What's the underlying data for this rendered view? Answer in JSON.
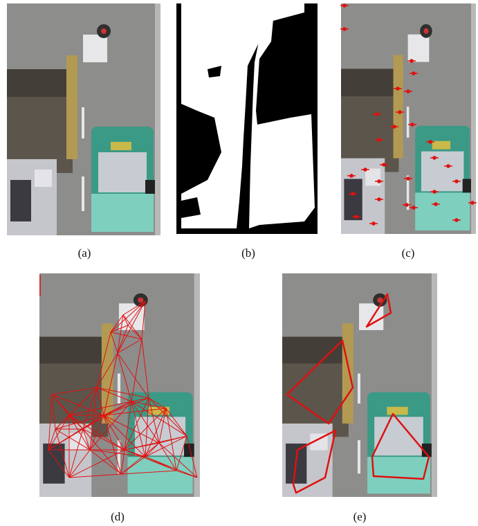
{
  "figure": {
    "captions": [
      "(a)",
      "(b)",
      "(c)",
      "(d)",
      "(e)"
    ]
  }
}
